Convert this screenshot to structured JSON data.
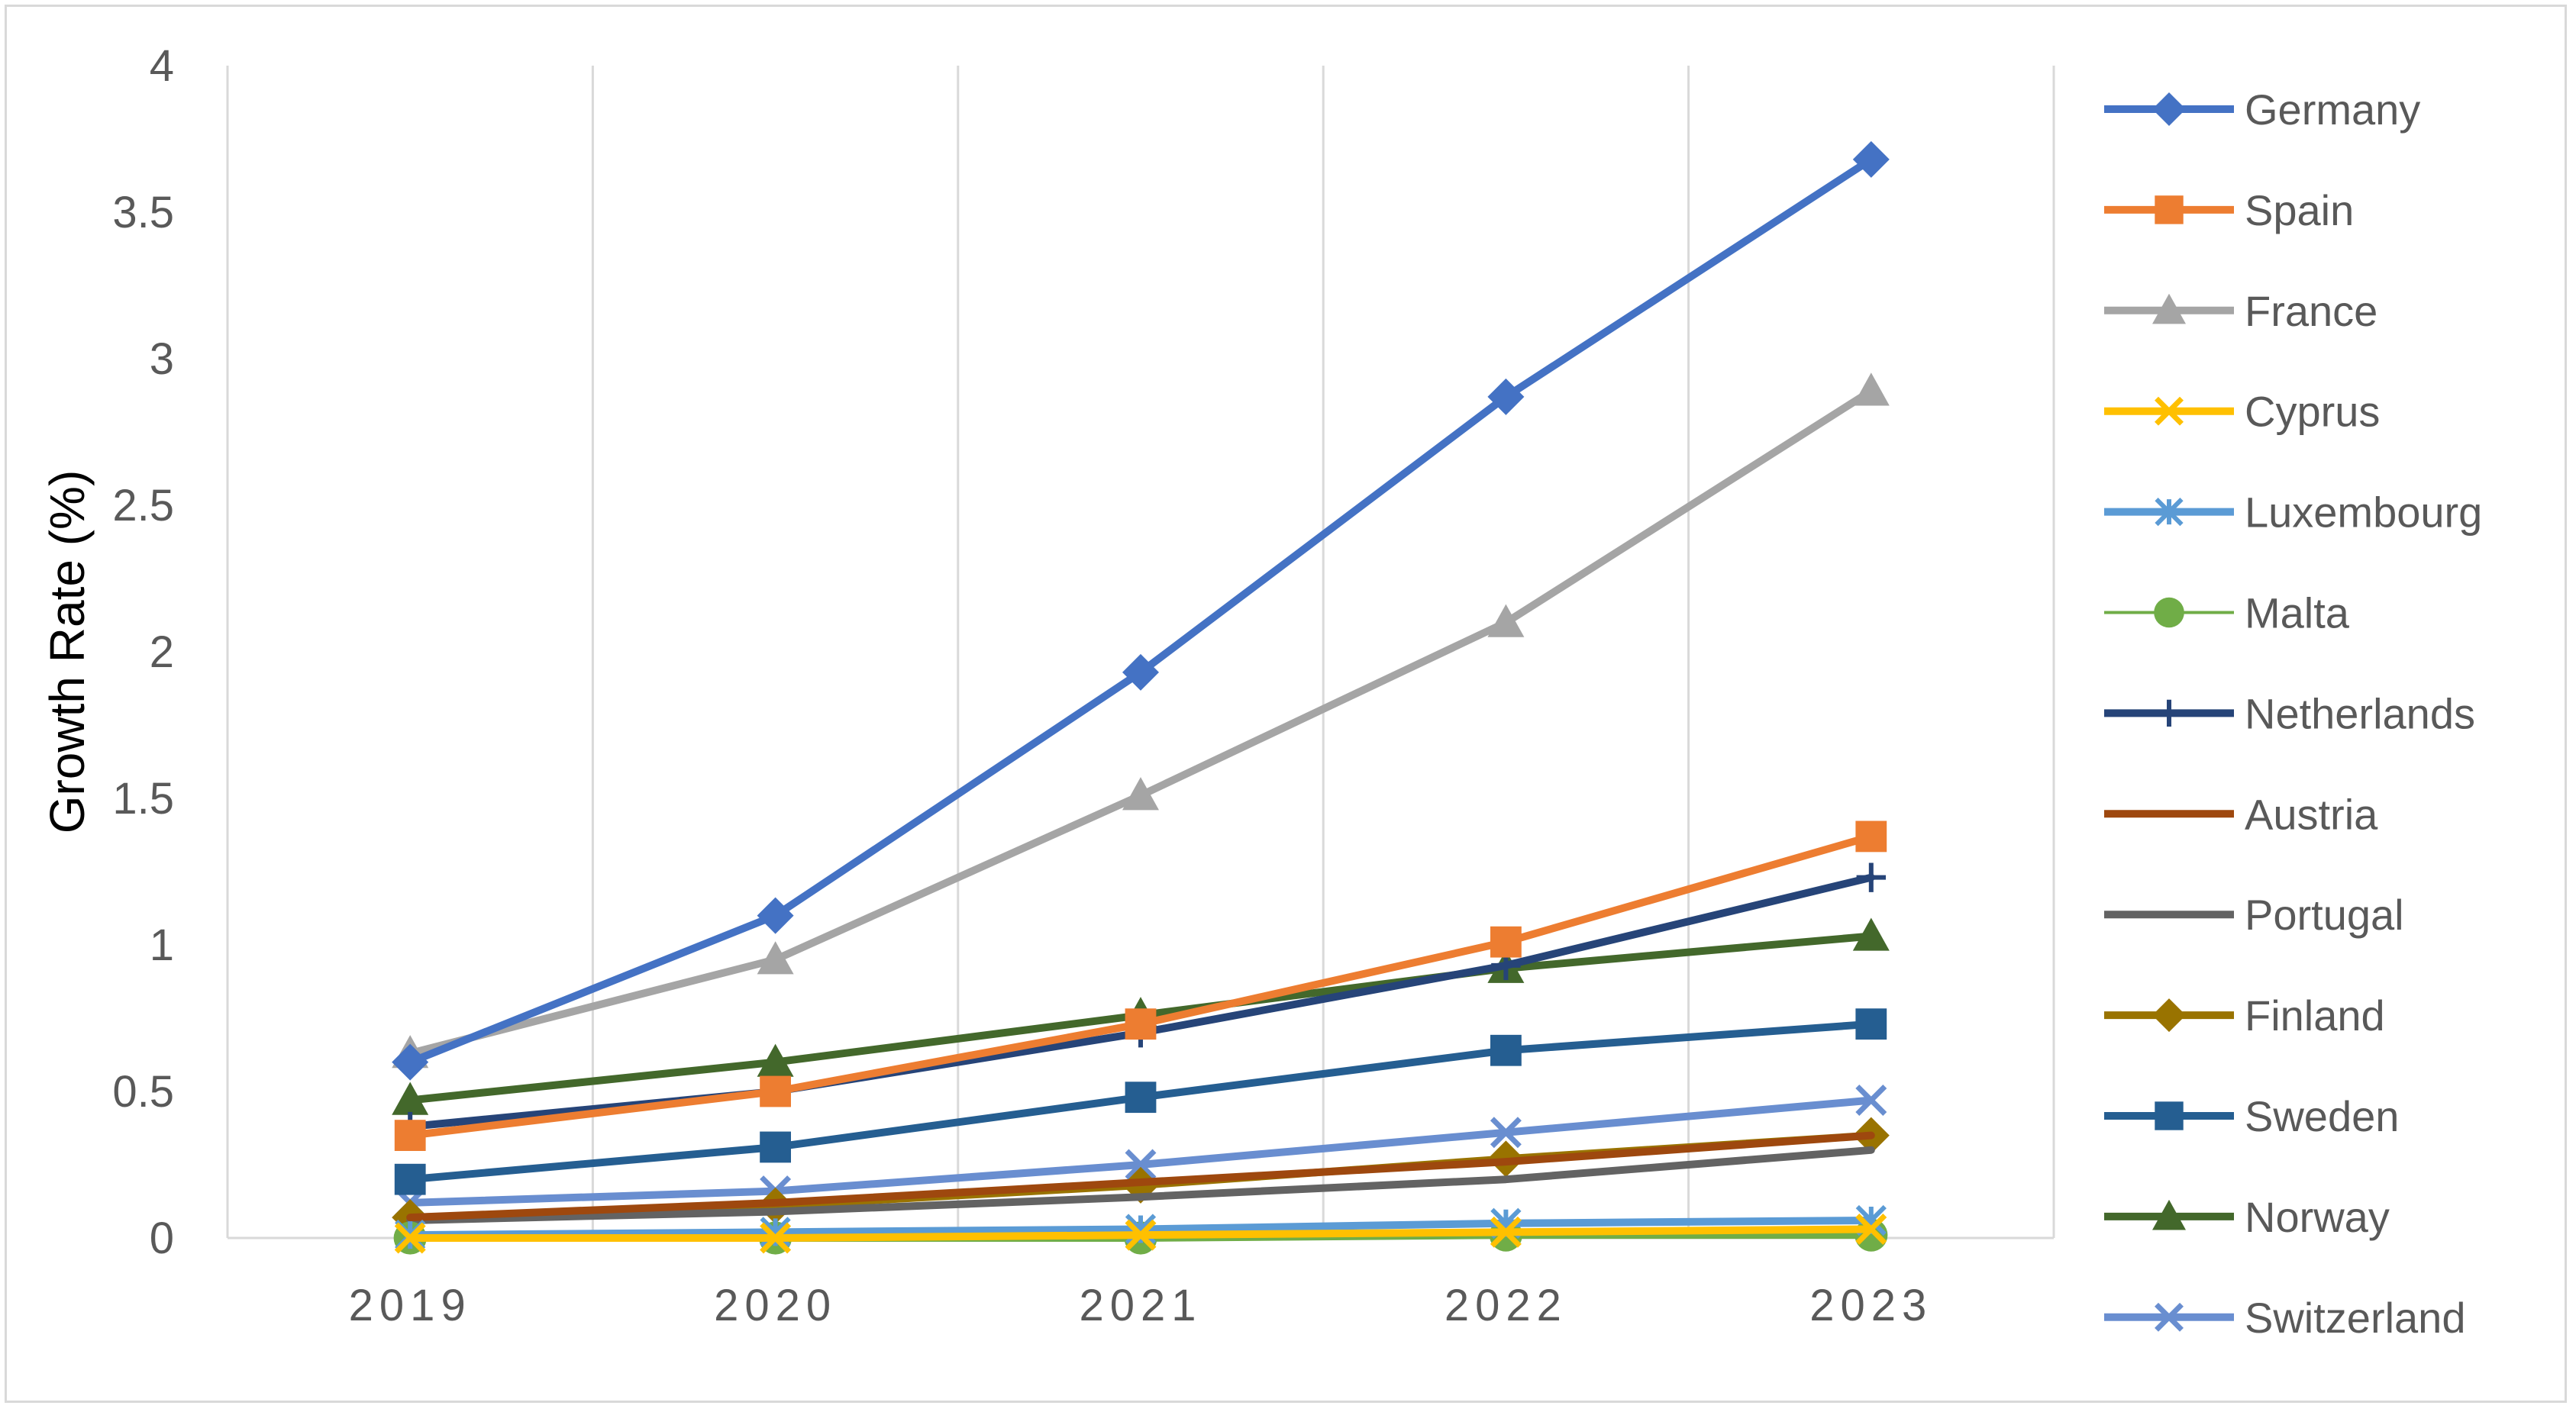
{
  "chart_data": {
    "type": "line",
    "title": "",
    "xlabel": "",
    "ylabel": "Growth Rate (%)",
    "x": [
      "2019",
      "2020",
      "2021",
      "2022",
      "2023"
    ],
    "y_ticks": [
      "0",
      "0.5",
      "1",
      "1.5",
      "2",
      "2.5",
      "3",
      "3.5",
      "4"
    ],
    "ylim": [
      0,
      4
    ],
    "grid": "vertical",
    "legend_position": "right",
    "series": [
      {
        "name": "Germany",
        "color": "#4472c4",
        "marker": "diamond",
        "values": [
          0.6,
          1.1,
          1.93,
          2.87,
          3.68
        ]
      },
      {
        "name": "Spain",
        "color": "#ed7d31",
        "marker": "square",
        "values": [
          0.35,
          0.5,
          0.73,
          1.01,
          1.37
        ]
      },
      {
        "name": "France",
        "color": "#a5a5a5",
        "marker": "triangle",
        "values": [
          0.63,
          0.95,
          1.51,
          2.1,
          2.89
        ]
      },
      {
        "name": "Cyprus",
        "color": "#ffc000",
        "marker": "x",
        "values": [
          0.0,
          0.0,
          0.01,
          0.02,
          0.03
        ]
      },
      {
        "name": "Luxembourg",
        "color": "#5b9bd5",
        "marker": "asterisk",
        "values": [
          0.01,
          0.02,
          0.03,
          0.05,
          0.06
        ]
      },
      {
        "name": "Malta",
        "color": "#70ad47",
        "marker": "circle",
        "values": [
          0.0,
          0.0,
          0.0,
          0.01,
          0.01
        ]
      },
      {
        "name": "Netherlands",
        "color": "#264478",
        "marker": "plus",
        "values": [
          0.38,
          0.5,
          0.7,
          0.93,
          1.23
        ]
      },
      {
        "name": "Austria",
        "color": "#9e480e",
        "marker": "none",
        "values": [
          0.07,
          0.12,
          0.19,
          0.26,
          0.35
        ]
      },
      {
        "name": "Portugal",
        "color": "#636363",
        "marker": "none",
        "values": [
          0.06,
          0.09,
          0.14,
          0.2,
          0.3
        ]
      },
      {
        "name": "Finland",
        "color": "#997300",
        "marker": "diamond",
        "values": [
          0.07,
          0.11,
          0.18,
          0.27,
          0.35
        ]
      },
      {
        "name": "Sweden",
        "color": "#255e91",
        "marker": "square",
        "values": [
          0.2,
          0.31,
          0.48,
          0.64,
          0.73
        ]
      },
      {
        "name": "Norway",
        "color": "#43682b",
        "marker": "triangle",
        "values": [
          0.47,
          0.6,
          0.76,
          0.92,
          1.03
        ]
      },
      {
        "name": "Switzerland",
        "color": "#698ed0",
        "marker": "x",
        "values": [
          0.12,
          0.16,
          0.25,
          0.36,
          0.47
        ]
      }
    ]
  }
}
